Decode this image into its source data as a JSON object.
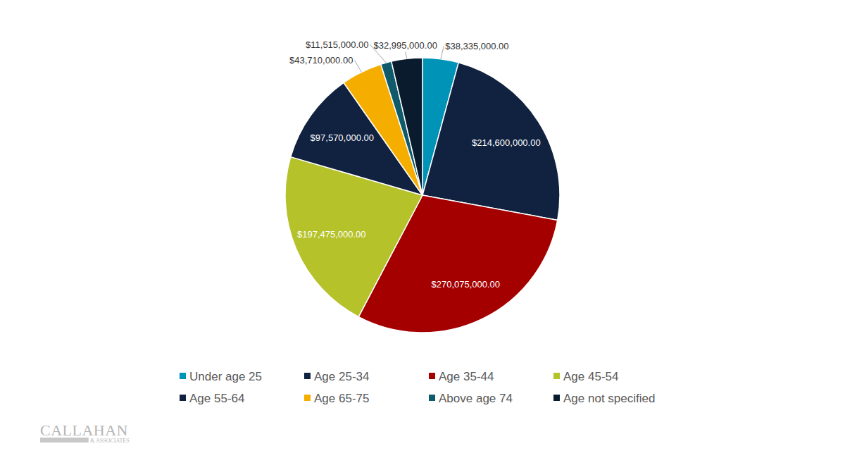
{
  "chart_data": {
    "type": "pie",
    "categories": [
      "Under age 25",
      "Age 25-34",
      "Age 35-44",
      "Age 45-54",
      "Age 55-64",
      "Age 65-75",
      "Above age 74",
      "Age not specified"
    ],
    "values": [
      38335000,
      214600000,
      270075000,
      197475000,
      97570000,
      43710000,
      11515000,
      32995000
    ],
    "value_labels": [
      "$38,335,000.00",
      "$214,600,000.00",
      "$270,075,000.00",
      "$197,475,000.00",
      "$97,570,000.00",
      "$43,710,000.00",
      "$11,515,000.00",
      "$32,995,000.00"
    ],
    "colors": [
      "#0093b8",
      "#10223f",
      "#a50000",
      "#b5c22a",
      "#10223f",
      "#f5ae00",
      "#0f5b6c",
      "#0b1b2e"
    ],
    "data_labels": true,
    "legend": "bottom",
    "annotations": [
      "CALLAHAN",
      "& ASSOCIATES"
    ]
  }
}
